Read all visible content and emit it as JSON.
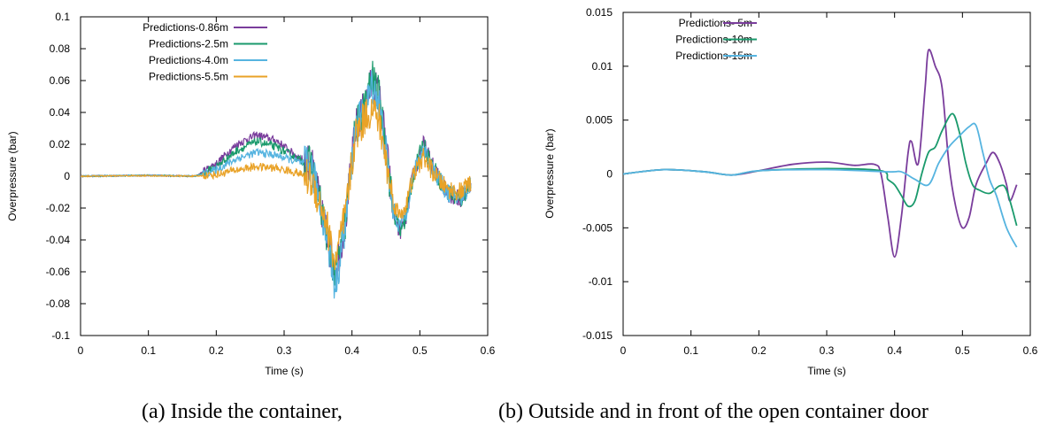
{
  "captions": {
    "a": "(a) Inside the container,",
    "b": "(b) Outside and in front of the open container door"
  },
  "chart_data": [
    {
      "type": "line",
      "title": "",
      "xlabel": "Time (s)",
      "ylabel": "Overpressure (bar)",
      "xlim": [
        0,
        0.6
      ],
      "ylim": [
        -0.1,
        0.1
      ],
      "xticks": [
        0,
        0.1,
        0.2,
        0.3,
        0.4,
        0.5,
        0.6
      ],
      "xtick_labels": [
        "0",
        "0.1",
        "0.2",
        "0.3",
        "0.4",
        "0.5",
        "0.6"
      ],
      "yticks": [
        -0.1,
        -0.08,
        -0.06,
        -0.04,
        -0.02,
        0,
        0.02,
        0.04,
        0.06,
        0.08,
        0.1
      ],
      "ytick_labels": [
        "-0.1",
        "-0.08",
        "-0.06",
        "-0.04",
        "-0.02",
        "0",
        "0.02",
        "0.04",
        "0.06",
        "0.08",
        "0.1"
      ],
      "grid": false,
      "legend": "top-left",
      "noisy": true,
      "series": [
        {
          "name": "Predictions-0.86m",
          "color": "#7a3d9c",
          "points": [
            [
              0,
              0
            ],
            [
              0.1,
              0.0005
            ],
            [
              0.17,
              0
            ],
            [
              0.2,
              0.008
            ],
            [
              0.23,
              0.02
            ],
            [
              0.26,
              0.026
            ],
            [
              0.29,
              0.022
            ],
            [
              0.32,
              0.012
            ],
            [
              0.34,
              0.008
            ],
            [
              0.36,
              -0.03
            ],
            [
              0.375,
              -0.06
            ],
            [
              0.39,
              -0.03
            ],
            [
              0.405,
              0.03
            ],
            [
              0.42,
              0.045
            ],
            [
              0.43,
              0.06
            ],
            [
              0.44,
              0.05
            ],
            [
              0.45,
              0.02
            ],
            [
              0.46,
              -0.02
            ],
            [
              0.47,
              -0.035
            ],
            [
              0.48,
              -0.025
            ],
            [
              0.49,
              0
            ],
            [
              0.505,
              0.02
            ],
            [
              0.52,
              0.005
            ],
            [
              0.54,
              -0.01
            ],
            [
              0.56,
              -0.015
            ],
            [
              0.575,
              -0.005
            ]
          ]
        },
        {
          "name": "Predictions-2.5m",
          "color": "#1a9a6c",
          "points": [
            [
              0,
              0
            ],
            [
              0.1,
              0.0005
            ],
            [
              0.17,
              0
            ],
            [
              0.2,
              0.006
            ],
            [
              0.23,
              0.016
            ],
            [
              0.26,
              0.022
            ],
            [
              0.29,
              0.018
            ],
            [
              0.32,
              0.011
            ],
            [
              0.34,
              0.007
            ],
            [
              0.36,
              -0.03
            ],
            [
              0.375,
              -0.062
            ],
            [
              0.39,
              -0.03
            ],
            [
              0.405,
              0.03
            ],
            [
              0.42,
              0.045
            ],
            [
              0.43,
              0.062
            ],
            [
              0.44,
              0.05
            ],
            [
              0.45,
              0.018
            ],
            [
              0.46,
              -0.02
            ],
            [
              0.47,
              -0.035
            ],
            [
              0.48,
              -0.025
            ],
            [
              0.49,
              0
            ],
            [
              0.505,
              0.02
            ],
            [
              0.52,
              0.005
            ],
            [
              0.54,
              -0.01
            ],
            [
              0.56,
              -0.015
            ],
            [
              0.575,
              -0.005
            ]
          ]
        },
        {
          "name": "Predictions-4.0m",
          "color": "#56b4e0",
          "points": [
            [
              0,
              0
            ],
            [
              0.1,
              0.0005
            ],
            [
              0.17,
              0
            ],
            [
              0.2,
              0.004
            ],
            [
              0.23,
              0.011
            ],
            [
              0.26,
              0.015
            ],
            [
              0.29,
              0.013
            ],
            [
              0.32,
              0.009
            ],
            [
              0.34,
              0.006
            ],
            [
              0.36,
              -0.03
            ],
            [
              0.375,
              -0.07
            ],
            [
              0.39,
              -0.032
            ],
            [
              0.405,
              0.03
            ],
            [
              0.42,
              0.042
            ],
            [
              0.43,
              0.058
            ],
            [
              0.44,
              0.046
            ],
            [
              0.45,
              0.015
            ],
            [
              0.46,
              -0.02
            ],
            [
              0.47,
              -0.032
            ],
            [
              0.48,
              -0.022
            ],
            [
              0.49,
              0
            ],
            [
              0.505,
              0.018
            ],
            [
              0.52,
              0.004
            ],
            [
              0.54,
              -0.01
            ],
            [
              0.56,
              -0.014
            ],
            [
              0.575,
              -0.005
            ]
          ]
        },
        {
          "name": "Predictions-5.5m",
          "color": "#e9a227",
          "points": [
            [
              0,
              0
            ],
            [
              0.1,
              0.0003
            ],
            [
              0.17,
              0
            ],
            [
              0.2,
              0.001
            ],
            [
              0.23,
              0.004
            ],
            [
              0.26,
              0.006
            ],
            [
              0.29,
              0.005
            ],
            [
              0.32,
              0.002
            ],
            [
              0.34,
              -0.002
            ],
            [
              0.36,
              -0.025
            ],
            [
              0.375,
              -0.055
            ],
            [
              0.39,
              -0.025
            ],
            [
              0.405,
              0.025
            ],
            [
              0.42,
              0.038
            ],
            [
              0.43,
              0.042
            ],
            [
              0.44,
              0.035
            ],
            [
              0.45,
              0.01
            ],
            [
              0.46,
              -0.015
            ],
            [
              0.47,
              -0.025
            ],
            [
              0.48,
              -0.018
            ],
            [
              0.49,
              0
            ],
            [
              0.505,
              0.012
            ],
            [
              0.52,
              0.002
            ],
            [
              0.54,
              -0.008
            ],
            [
              0.56,
              -0.01
            ],
            [
              0.575,
              -0.004
            ]
          ]
        }
      ]
    },
    {
      "type": "line",
      "title": "",
      "xlabel": "Time (s)",
      "ylabel": "Overpressure (bar)",
      "xlim": [
        0,
        0.6
      ],
      "ylim": [
        -0.015,
        0.015
      ],
      "xticks": [
        0,
        0.1,
        0.2,
        0.3,
        0.4,
        0.5,
        0.6
      ],
      "xtick_labels": [
        "0",
        "0.1",
        "0.2",
        "0.3",
        "0.4",
        "0.5",
        "0.6"
      ],
      "yticks": [
        -0.015,
        -0.01,
        -0.005,
        0,
        0.005,
        0.01,
        0.015
      ],
      "ytick_labels": [
        "-0.015",
        "-0.01",
        "-0.005",
        "0",
        "0.005",
        "0.01",
        "0.015"
      ],
      "grid": false,
      "legend": "top-left",
      "noisy": false,
      "series": [
        {
          "name": "Predictions- 5m",
          "color": "#7a3d9c",
          "points": [
            [
              0,
              0
            ],
            [
              0.06,
              0.0004
            ],
            [
              0.12,
              0.0002
            ],
            [
              0.16,
              -0.0001
            ],
            [
              0.2,
              0.0003
            ],
            [
              0.25,
              0.0009
            ],
            [
              0.3,
              0.0011
            ],
            [
              0.34,
              0.0008
            ],
            [
              0.37,
              0.0009
            ],
            [
              0.38,
              0
            ],
            [
              0.39,
              -0.004
            ],
            [
              0.4,
              -0.0077
            ],
            [
              0.41,
              -0.004
            ],
            [
              0.42,
              0.002
            ],
            [
              0.425,
              0.003
            ],
            [
              0.435,
              0.001
            ],
            [
              0.445,
              0.008
            ],
            [
              0.45,
              0.0115
            ],
            [
              0.46,
              0.01
            ],
            [
              0.47,
              0.008
            ],
            [
              0.48,
              0.001
            ],
            [
              0.49,
              -0.003
            ],
            [
              0.5,
              -0.005
            ],
            [
              0.51,
              -0.004
            ],
            [
              0.52,
              -0.001
            ],
            [
              0.535,
              0.001
            ],
            [
              0.545,
              0.002
            ],
            [
              0.555,
              0.001
            ],
            [
              0.565,
              -0.001
            ],
            [
              0.57,
              -0.0025
            ],
            [
              0.58,
              -0.001
            ]
          ]
        },
        {
          "name": "Predictions-10m",
          "color": "#1a9a6c",
          "points": [
            [
              0,
              0
            ],
            [
              0.06,
              0.0004
            ],
            [
              0.12,
              0.0002
            ],
            [
              0.16,
              -0.0001
            ],
            [
              0.2,
              0.0003
            ],
            [
              0.3,
              0.0005
            ],
            [
              0.38,
              0.0003
            ],
            [
              0.39,
              -0.0005
            ],
            [
              0.4,
              -0.001
            ],
            [
              0.41,
              -0.002
            ],
            [
              0.42,
              -0.003
            ],
            [
              0.43,
              -0.0025
            ],
            [
              0.44,
              0
            ],
            [
              0.45,
              0.002
            ],
            [
              0.46,
              0.0025
            ],
            [
              0.47,
              0.004
            ],
            [
              0.485,
              0.0056
            ],
            [
              0.495,
              0.004
            ],
            [
              0.505,
              0.001
            ],
            [
              0.515,
              -0.001
            ],
            [
              0.525,
              -0.0015
            ],
            [
              0.54,
              -0.0018
            ],
            [
              0.555,
              -0.0011
            ],
            [
              0.565,
              -0.0015
            ],
            [
              0.58,
              -0.0048
            ]
          ]
        },
        {
          "name": "Predictions-15m",
          "color": "#56b4e0",
          "points": [
            [
              0,
              0
            ],
            [
              0.06,
              0.0004
            ],
            [
              0.12,
              0.0002
            ],
            [
              0.16,
              -0.0001
            ],
            [
              0.2,
              0.0003
            ],
            [
              0.3,
              0.0004
            ],
            [
              0.39,
              0.0002
            ],
            [
              0.41,
              0.0002
            ],
            [
              0.43,
              -0.0005
            ],
            [
              0.45,
              -0.001
            ],
            [
              0.465,
              0.001
            ],
            [
              0.48,
              0.0025
            ],
            [
              0.495,
              0.0035
            ],
            [
              0.51,
              0.0044
            ],
            [
              0.52,
              0.0045
            ],
            [
              0.53,
              0.002
            ],
            [
              0.54,
              -0.0005
            ],
            [
              0.55,
              -0.002
            ],
            [
              0.565,
              -0.005
            ],
            [
              0.58,
              -0.0068
            ]
          ]
        }
      ]
    }
  ]
}
